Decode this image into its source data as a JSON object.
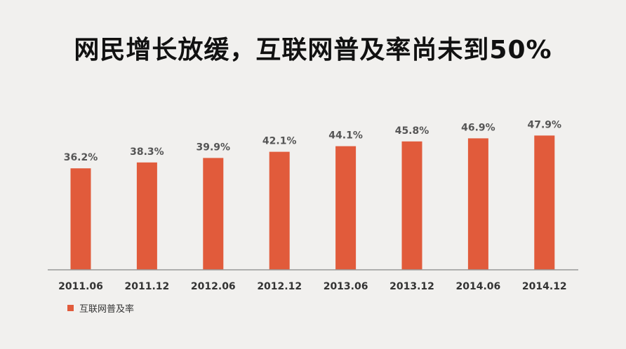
{
  "title": "网民增长放缓，互联网普及率尚未到50%",
  "legend": {
    "label": "互联网普及率"
  },
  "colors": {
    "bar": "#e15b3b",
    "axis": "#999999",
    "background": "#f1f0ee"
  },
  "chart_data": {
    "type": "bar",
    "title": "网民增长放缓，互联网普及率尚未到50%",
    "categories": [
      "2011.06",
      "2011.12",
      "2012.06",
      "2012.12",
      "2013.06",
      "2013.12",
      "2014.06",
      "2014.12"
    ],
    "series": [
      {
        "name": "互联网普及率",
        "values": [
          36.2,
          38.3,
          39.9,
          42.1,
          44.1,
          45.8,
          46.9,
          47.9
        ],
        "labels": [
          "36.2%",
          "38.3%",
          "39.9%",
          "42.1%",
          "44.1%",
          "45.8%",
          "46.9%",
          "47.9%"
        ]
      }
    ],
    "ylim": [
      0,
      50
    ],
    "grid": false,
    "legend_position": "bottom-left",
    "xlabel": "",
    "ylabel": ""
  }
}
